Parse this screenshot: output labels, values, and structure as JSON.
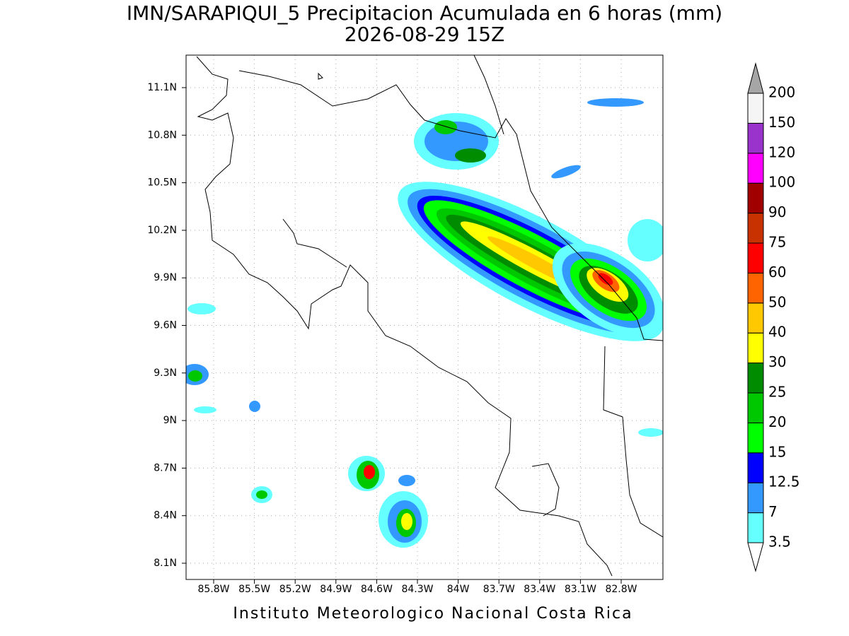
{
  "header": {
    "title": "IMN/SARAPIQUI_5 Precipitacion Acumulada en 6 horas (mm)",
    "subtitle": "2026-08-29 15Z"
  },
  "map": {
    "lon_labels": [
      "85.8W",
      "85.5W",
      "85.2W",
      "84.9W",
      "84.6W",
      "84.3W",
      "84W",
      "83.7W",
      "83.4W",
      "83.1W",
      "82.8W"
    ],
    "lat_labels": [
      "11.1N",
      "10.8N",
      "10.5N",
      "10.2N",
      "9.9N",
      "9.6N",
      "9.3N",
      "9N",
      "8.7N",
      "8.4N",
      "8.1N"
    ]
  },
  "colorbar": {
    "levels": [
      3.5,
      7,
      12.5,
      15,
      20,
      25,
      30,
      40,
      50,
      60,
      75,
      90,
      100,
      120,
      150,
      200
    ],
    "colors": [
      "#66ffff",
      "#3399ff",
      "#0000ff",
      "#00ff00",
      "#00c800",
      "#008c00",
      "#ffff00",
      "#ffc800",
      "#ff6400",
      "#ff0000",
      "#c83200",
      "#a00000",
      "#ff00ff",
      "#9933cc",
      "#f5f5f5"
    ],
    "over_color": "#a6a6a6",
    "under_color": "#ffffff"
  },
  "footer": "Instituto Meteorologico Nacional Costa Rica"
}
